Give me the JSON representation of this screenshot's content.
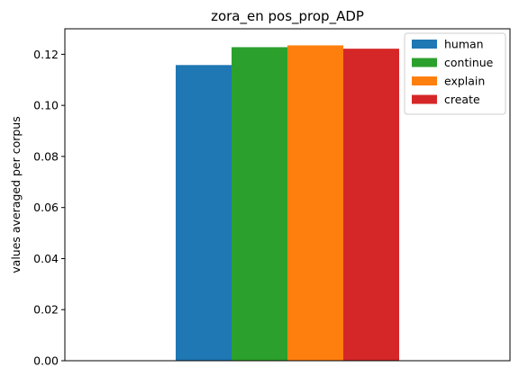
{
  "chart_data": {
    "type": "bar",
    "title": "zora_en pos_prop_ADP",
    "xlabel": "",
    "ylabel": "values averaged per corpus",
    "ylim": [
      0,
      0.13
    ],
    "yticks": [
      0.0,
      0.02,
      0.04,
      0.06,
      0.08,
      0.1,
      0.12
    ],
    "ytick_labels": [
      "0.00",
      "0.02",
      "0.04",
      "0.06",
      "0.08",
      "0.10",
      "0.12"
    ],
    "grid": false,
    "legend_position": "top-right",
    "series": [
      {
        "name": "human",
        "value": 0.1158,
        "color": "#1f77b4"
      },
      {
        "name": "continue",
        "value": 0.1228,
        "color": "#2ca02c"
      },
      {
        "name": "explain",
        "value": 0.1235,
        "color": "#ff7f0e"
      },
      {
        "name": "create",
        "value": 0.1222,
        "color": "#d62728"
      }
    ]
  }
}
